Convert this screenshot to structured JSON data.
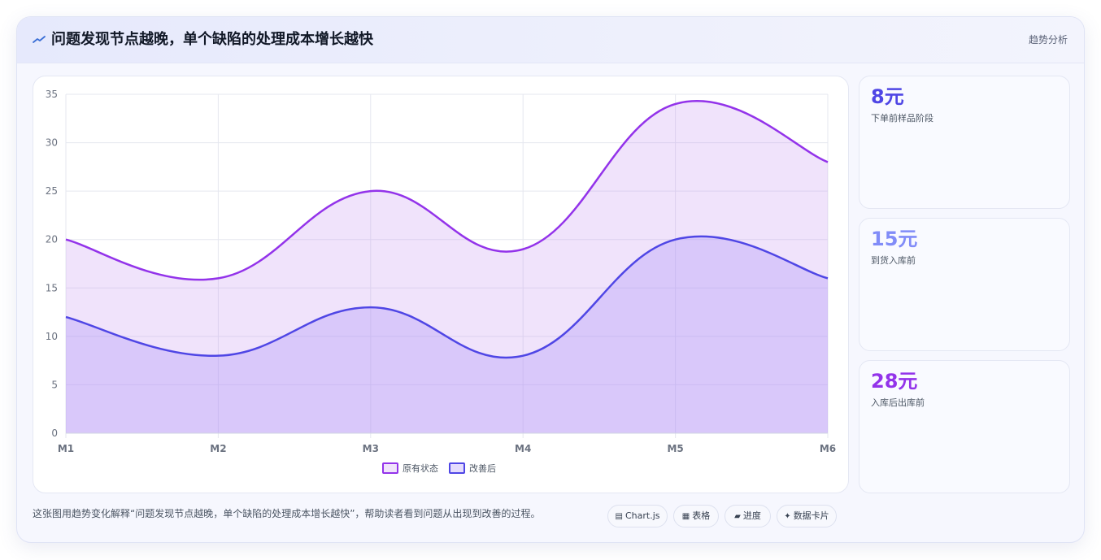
{
  "header": {
    "title": "问题发现节点越晚，单个缺陷的处理成本增长越快",
    "tag": "趋势分析"
  },
  "stats": [
    {
      "value": "8元",
      "label": "下单前样品阶段",
      "color": "#4f46e5"
    },
    {
      "value": "15元",
      "label": "到货入库前",
      "color": "#818cf8"
    },
    {
      "value": "28元",
      "label": "入库后出库前",
      "color": "#9333ea"
    }
  ],
  "footer": {
    "text": "这张图用趋势变化解释“问题发现节点越晚，单个缺陷的处理成本增长越快”，帮助读者看到问题从出现到改善的过程。"
  },
  "chips": [
    {
      "icon": "chart-icon",
      "glyph": "▤",
      "label": "Chart.js"
    },
    {
      "icon": "table-icon",
      "glyph": "▦",
      "label": "表格"
    },
    {
      "icon": "progress-icon",
      "glyph": "▰",
      "label": "进度"
    },
    {
      "icon": "sparkle-icon",
      "glyph": "✦",
      "label": "数据卡片"
    }
  ],
  "chart_data": {
    "type": "area",
    "categories": [
      "M1",
      "M2",
      "M3",
      "M4",
      "M5",
      "M6"
    ],
    "series": [
      {
        "name": "原有状态",
        "values": [
          20,
          16,
          25,
          19,
          34,
          28
        ],
        "color": "#9333ea",
        "fill": "rgba(196,148,240,0.26)"
      },
      {
        "name": "改善后",
        "values": [
          12,
          8,
          13,
          8,
          20,
          16
        ],
        "color": "#4f46e5",
        "fill": "rgba(167,139,250,0.30)"
      }
    ],
    "ylim": [
      0,
      35
    ],
    "yticks": [
      0,
      5,
      10,
      15,
      20,
      25,
      30,
      35
    ],
    "grid": true,
    "legend": "bottom"
  }
}
